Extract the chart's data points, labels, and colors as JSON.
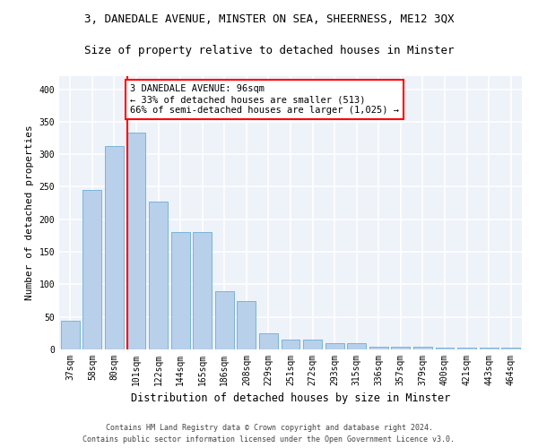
{
  "title1": "3, DANEDALE AVENUE, MINSTER ON SEA, SHEERNESS, ME12 3QX",
  "title2": "Size of property relative to detached houses in Minster",
  "xlabel": "Distribution of detached houses by size in Minster",
  "ylabel": "Number of detached properties",
  "categories": [
    "37sqm",
    "58sqm",
    "80sqm",
    "101sqm",
    "122sqm",
    "144sqm",
    "165sqm",
    "186sqm",
    "208sqm",
    "229sqm",
    "251sqm",
    "272sqm",
    "293sqm",
    "315sqm",
    "336sqm",
    "357sqm",
    "379sqm",
    "400sqm",
    "421sqm",
    "443sqm",
    "464sqm"
  ],
  "values": [
    44,
    245,
    312,
    333,
    227,
    180,
    180,
    89,
    74,
    25,
    15,
    15,
    9,
    9,
    4,
    4,
    4,
    3,
    3,
    3,
    3
  ],
  "bar_color": "#b8d0ea",
  "bar_edge_color": "#6aadd5",
  "highlight_line_index": 3,
  "annotation_text": "3 DANEDALE AVENUE: 96sqm\n← 33% of detached houses are smaller (513)\n66% of semi-detached houses are larger (1,025) →",
  "annotation_box_color": "white",
  "annotation_box_edge_color": "red",
  "vline_color": "red",
  "ylim": [
    0,
    420
  ],
  "yticks": [
    0,
    50,
    100,
    150,
    200,
    250,
    300,
    350,
    400
  ],
  "footer1": "Contains HM Land Registry data © Crown copyright and database right 2024.",
  "footer2": "Contains public sector information licensed under the Open Government Licence v3.0.",
  "bg_color": "#eef2f9",
  "grid_color": "white",
  "title1_fontsize": 9,
  "title2_fontsize": 9,
  "annot_fontsize": 7.5,
  "tick_fontsize": 7,
  "ylabel_fontsize": 8,
  "xlabel_fontsize": 8.5,
  "footer_fontsize": 6
}
